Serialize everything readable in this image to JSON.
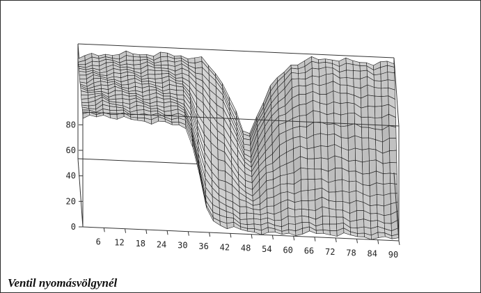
{
  "caption": "Ventil nyomásvölgynél",
  "chart_data": {
    "type": "surface3d",
    "title": "",
    "xlabel": "",
    "ylabel": "",
    "zlabel": "",
    "x_ticks": [
      "6",
      "12",
      "18",
      "24",
      "30",
      "36",
      "42",
      "48",
      "54",
      "60",
      "66",
      "72",
      "78",
      "84",
      "90"
    ],
    "z_ticks": [
      "0",
      "20",
      "40",
      "60",
      "80"
    ],
    "x_range": [
      0,
      90
    ],
    "z_range": [
      0,
      90
    ],
    "description_values": {
      "x": [
        0,
        6,
        12,
        18,
        24,
        30,
        36,
        42,
        48,
        54,
        60,
        66,
        72,
        78,
        84,
        90
      ],
      "front_edge_z": [
        85,
        88,
        86,
        85,
        84,
        82,
        10,
        4,
        2,
        1,
        2,
        3,
        3,
        2,
        1,
        2
      ],
      "back_edge_z": [
        80,
        82,
        84,
        84,
        85,
        84,
        82,
        62,
        20,
        60,
        80,
        86,
        87,
        86,
        85,
        86
      ]
    },
    "colors": {
      "surface_fill": "#c9c9c9",
      "surface_shadow": "#5a5a5a",
      "mesh_line": "#1a1a1a",
      "box_line": "#333333"
    }
  }
}
